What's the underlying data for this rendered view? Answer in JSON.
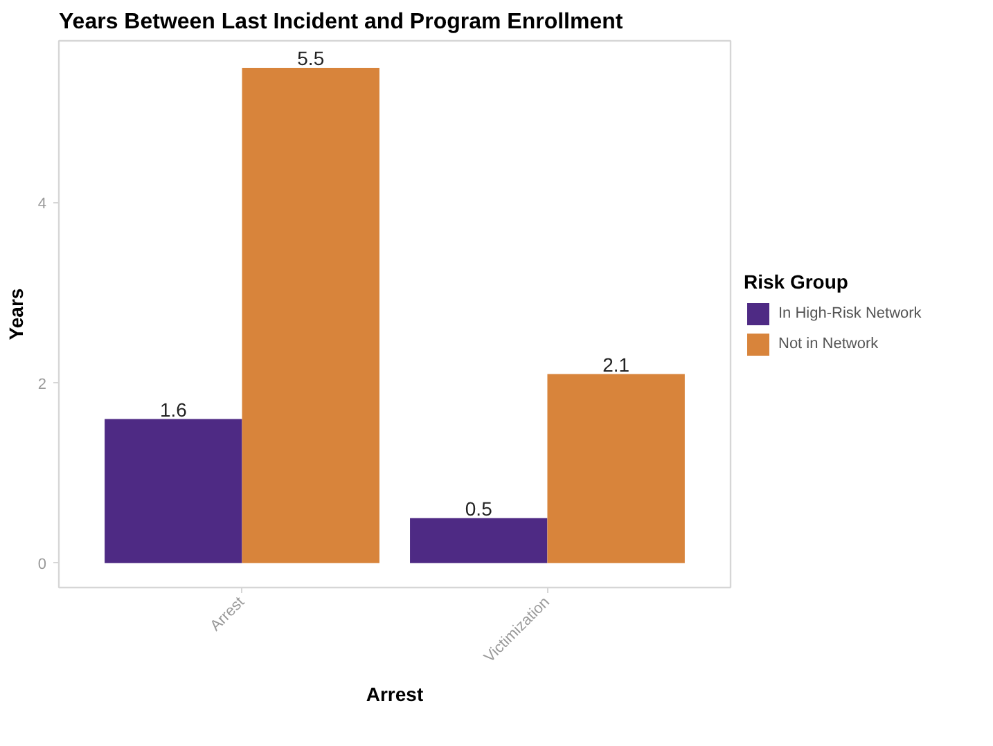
{
  "chart_data": {
    "type": "bar",
    "title": "Years Between Last Incident and Program Enrollment",
    "xlabel": "Arrest",
    "ylabel": "Years",
    "legend_title": "Risk Group",
    "categories": [
      "Arrest",
      "Victimization"
    ],
    "series": [
      {
        "name": "In High-Risk Network",
        "color": "#4e2a84",
        "values": [
          1.6,
          0.5
        ]
      },
      {
        "name": "Not in Network",
        "color": "#d8843b",
        "values": [
          5.5,
          2.1
        ]
      }
    ],
    "ylim": [
      -0.27,
      5.8
    ],
    "yticks": [
      0,
      2,
      4
    ],
    "data_labels": true,
    "grid": false,
    "legend": "right"
  }
}
